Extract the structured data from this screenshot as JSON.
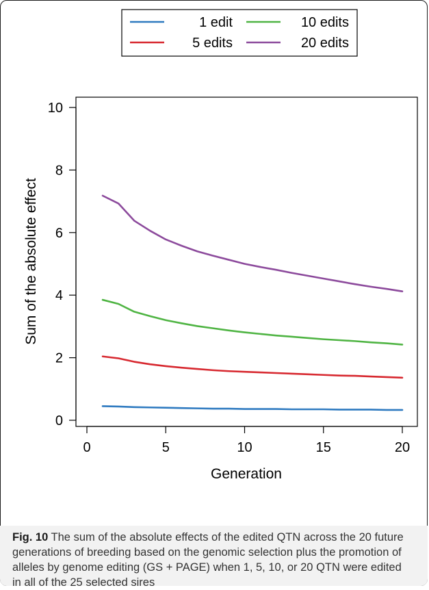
{
  "figure": {
    "caption_label": "Fig. 10",
    "caption_text": " The sum of the absolute effects of the edited QTN across the 20 future generations of breeding based on the genomic selection plus the promotion of alleles by genome editing (GS + PAGE) when 1, 5, 10, or 20 QTN were edited in all of the 25 selected sires"
  },
  "chart_data": {
    "type": "line",
    "title": "",
    "xlabel": "Generation",
    "ylabel": "Sum of the absolute effect",
    "xlim": [
      0,
      21
    ],
    "ylim": [
      0,
      10
    ],
    "xticks": [
      0,
      5,
      10,
      15,
      20
    ],
    "yticks": [
      0,
      2,
      4,
      6,
      8,
      10
    ],
    "legend_position": "top",
    "grid": false,
    "x": [
      1,
      2,
      3,
      4,
      5,
      6,
      7,
      8,
      9,
      10,
      11,
      12,
      13,
      14,
      15,
      16,
      17,
      18,
      19,
      20
    ],
    "series": [
      {
        "name": "1 edit",
        "color": "#2e7ac0",
        "values": [
          0.45,
          0.44,
          0.42,
          0.41,
          0.4,
          0.39,
          0.38,
          0.37,
          0.37,
          0.36,
          0.36,
          0.36,
          0.35,
          0.35,
          0.35,
          0.34,
          0.34,
          0.34,
          0.33,
          0.33
        ]
      },
      {
        "name": "5 edits",
        "color": "#d7282f",
        "values": [
          2.04,
          1.98,
          1.87,
          1.79,
          1.73,
          1.68,
          1.64,
          1.6,
          1.57,
          1.55,
          1.53,
          1.51,
          1.49,
          1.47,
          1.45,
          1.43,
          1.42,
          1.4,
          1.38,
          1.36
        ]
      },
      {
        "name": "10 edits",
        "color": "#4fb443",
        "values": [
          3.85,
          3.72,
          3.47,
          3.33,
          3.2,
          3.1,
          3.01,
          2.94,
          2.87,
          2.81,
          2.76,
          2.71,
          2.67,
          2.63,
          2.59,
          2.56,
          2.53,
          2.49,
          2.46,
          2.42
        ]
      },
      {
        "name": "20 edits",
        "color": "#8c4a9c",
        "values": [
          7.18,
          6.93,
          6.38,
          6.06,
          5.78,
          5.58,
          5.4,
          5.26,
          5.13,
          5.0,
          4.9,
          4.81,
          4.71,
          4.62,
          4.53,
          4.44,
          4.35,
          4.27,
          4.2,
          4.12
        ]
      }
    ]
  }
}
